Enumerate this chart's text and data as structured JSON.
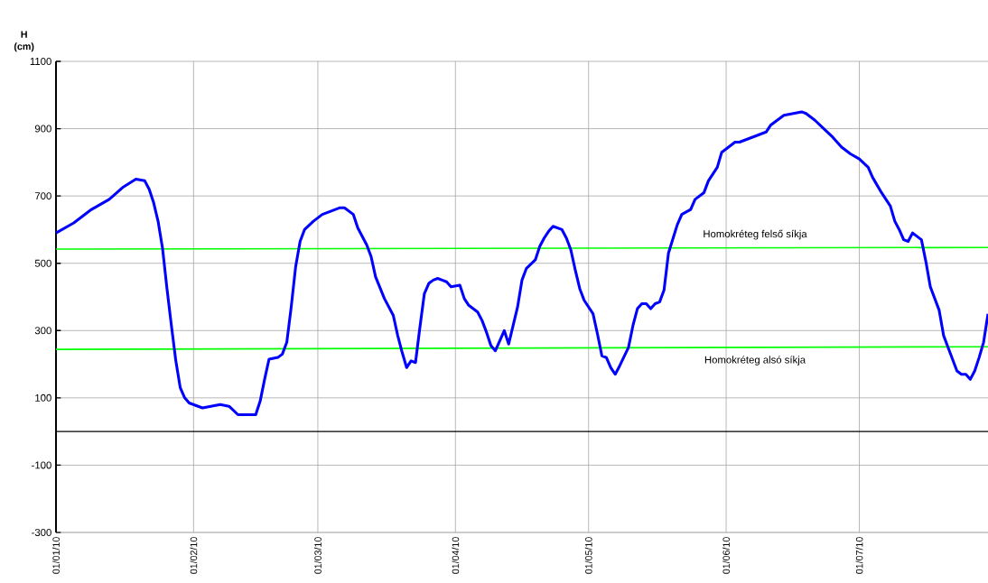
{
  "chart_data": {
    "type": "line",
    "ylabel": "H (cm)",
    "ylim": [
      -300,
      1100
    ],
    "yticks": [
      -300,
      -100,
      100,
      300,
      500,
      700,
      900,
      1100
    ],
    "xlim": [
      "2010-01-01",
      "2010-07-30"
    ],
    "xticks": [
      {
        "value": "2010-01-01",
        "label": "01/01/10"
      },
      {
        "value": "2010-02-01",
        "label": "01/02/10"
      },
      {
        "value": "2010-03-01",
        "label": "01/03/10"
      },
      {
        "value": "2010-04-01",
        "label": "01/04/10"
      },
      {
        "value": "2010-05-01",
        "label": "01/05/10"
      },
      {
        "value": "2010-06-01",
        "label": "01/06/10"
      },
      {
        "value": "2010-07-01",
        "label": "01/07/10"
      }
    ],
    "grid": true,
    "marker": "none",
    "line_style": "solid",
    "ref_lines": [
      {
        "axis": "y",
        "value": 0,
        "color": "#000000"
      }
    ],
    "series": [
      {
        "color": "#0000ff",
        "x": [
          "2010-01-01",
          "2010-01-05",
          "2010-01-09",
          "2010-01-13",
          "2010-01-16",
          "2010-01-19",
          "2010-01-21",
          "2010-01-22",
          "2010-01-23",
          "2010-01-24",
          "2010-01-25",
          "2010-01-26",
          "2010-01-27",
          "2010-01-28",
          "2010-01-29",
          "2010-01-30",
          "2010-01-31",
          "2010-02-03",
          "2010-02-05",
          "2010-02-07",
          "2010-02-09",
          "2010-02-11",
          "2010-02-13",
          "2010-02-15",
          "2010-02-16",
          "2010-02-17",
          "2010-02-18",
          "2010-02-20",
          "2010-02-21",
          "2010-02-22",
          "2010-02-23",
          "2010-02-24",
          "2010-02-25",
          "2010-02-26",
          "2010-02-28",
          "2010-03-02",
          "2010-03-04",
          "2010-03-06",
          "2010-03-07",
          "2010-03-09",
          "2010-03-10",
          "2010-03-12",
          "2010-03-13",
          "2010-03-14",
          "2010-03-16",
          "2010-03-18",
          "2010-03-19",
          "2010-03-20",
          "2010-03-21",
          "2010-03-22",
          "2010-03-23",
          "2010-03-24",
          "2010-03-25",
          "2010-03-26",
          "2010-03-27",
          "2010-03-28",
          "2010-03-29",
          "2010-03-30",
          "2010-03-31",
          "2010-04-02",
          "2010-04-03",
          "2010-04-04",
          "2010-04-06",
          "2010-04-07",
          "2010-04-08",
          "2010-04-09",
          "2010-04-10",
          "2010-04-12",
          "2010-04-13",
          "2010-04-15",
          "2010-04-16",
          "2010-04-17",
          "2010-04-19",
          "2010-04-20",
          "2010-04-21",
          "2010-04-22",
          "2010-04-23",
          "2010-04-25",
          "2010-04-26",
          "2010-04-27",
          "2010-04-28",
          "2010-04-29",
          "2010-04-30",
          "2010-05-02",
          "2010-05-03",
          "2010-05-04",
          "2010-05-05",
          "2010-05-06",
          "2010-05-07",
          "2010-05-08",
          "2010-05-10",
          "2010-05-11",
          "2010-05-12",
          "2010-05-13",
          "2010-05-14",
          "2010-05-15",
          "2010-05-16",
          "2010-05-17",
          "2010-05-18",
          "2010-05-19",
          "2010-05-21",
          "2010-05-22",
          "2010-05-24",
          "2010-05-25",
          "2010-05-27",
          "2010-05-28",
          "2010-05-30",
          "2010-05-31",
          "2010-06-02",
          "2010-06-03",
          "2010-06-04",
          "2010-06-06",
          "2010-06-08",
          "2010-06-10",
          "2010-06-11",
          "2010-06-13",
          "2010-06-14",
          "2010-06-16",
          "2010-06-18",
          "2010-06-19",
          "2010-06-21",
          "2010-06-23",
          "2010-06-25",
          "2010-06-27",
          "2010-06-29",
          "2010-07-01",
          "2010-07-03",
          "2010-07-04",
          "2010-07-06",
          "2010-07-08",
          "2010-07-09",
          "2010-07-10",
          "2010-07-11",
          "2010-07-12",
          "2010-07-13",
          "2010-07-15",
          "2010-07-16",
          "2010-07-17",
          "2010-07-19",
          "2010-07-20",
          "2010-07-21",
          "2010-07-23",
          "2010-07-24",
          "2010-07-25",
          "2010-07-26",
          "2010-07-27",
          "2010-07-28",
          "2010-07-29",
          "2010-07-30"
        ],
        "values": [
          590,
          620,
          660,
          690,
          725,
          750,
          745,
          720,
          680,
          625,
          545,
          425,
          315,
          210,
          130,
          100,
          85,
          70,
          75,
          80,
          75,
          50,
          50,
          50,
          90,
          155,
          215,
          220,
          230,
          265,
          370,
          490,
          565,
          600,
          625,
          645,
          655,
          665,
          665,
          645,
          605,
          555,
          520,
          460,
          395,
          345,
          285,
          235,
          190,
          210,
          205,
          310,
          410,
          440,
          450,
          455,
          450,
          445,
          430,
          435,
          395,
          375,
          355,
          330,
          295,
          255,
          240,
          300,
          260,
          370,
          450,
          485,
          510,
          550,
          575,
          595,
          610,
          600,
          575,
          540,
          480,
          425,
          390,
          350,
          290,
          225,
          220,
          190,
          170,
          195,
          250,
          315,
          365,
          380,
          380,
          365,
          380,
          385,
          420,
          530,
          615,
          645,
          660,
          690,
          710,
          745,
          785,
          830,
          850,
          860,
          860,
          870,
          880,
          890,
          910,
          930,
          940,
          945,
          950,
          945,
          925,
          900,
          875,
          845,
          825,
          810,
          785,
          755,
          710,
          670,
          625,
          600,
          570,
          565,
          590,
          570,
          505,
          430,
          360,
          285,
          250,
          180,
          170,
          170,
          155,
          180,
          220,
          265,
          350
        ]
      },
      {
        "name": "Homokréteg felső síkja",
        "color": "#00ff00",
        "x": [
          "2010-01-01",
          "2010-07-30"
        ],
        "values": [
          542,
          547
        ]
      },
      {
        "name": "Homokréteg alsó síkja",
        "color": "#00ff00",
        "x": [
          "2010-01-01",
          "2010-07-30"
        ],
        "values": [
          244,
          252
        ]
      }
    ]
  }
}
